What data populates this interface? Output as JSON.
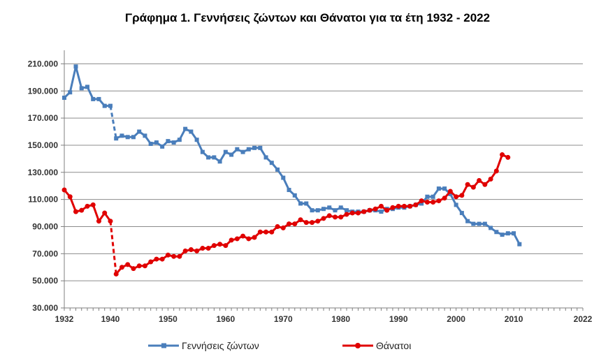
{
  "chart_data": {
    "type": "line",
    "title": "Γράφημα 1.  Γεννήσεις ζώντων και Θάνατοι για τα έτη 1932 - 2022",
    "xlabel": "",
    "ylabel": "",
    "xlim": [
      1932,
      2022
    ],
    "ylim": [
      30000,
      220000
    ],
    "x_ticks": [
      1932,
      1940,
      1950,
      1960,
      1970,
      1980,
      1990,
      2000,
      2010,
      2022
    ],
    "y_ticks": [
      30000,
      50000,
      70000,
      90000,
      110000,
      130000,
      150000,
      170000,
      190000,
      210000
    ],
    "y_tick_labels": [
      "30.000",
      "50.000",
      "70.000",
      "90.000",
      "110.000",
      "130.000",
      "150.000",
      "170.000",
      "190.000",
      "210.000"
    ],
    "grid": "horizontal",
    "legend": "bottom",
    "gap_between": [
      1940,
      1941
    ],
    "series": [
      {
        "name": "Γεννήσεις ζώντων",
        "color": "#4a7ebb",
        "marker": "square",
        "points": [
          [
            1932,
            185000
          ],
          [
            1933,
            189000
          ],
          [
            1934,
            208000
          ],
          [
            1935,
            192000
          ],
          [
            1936,
            193000
          ],
          [
            1937,
            184000
          ],
          [
            1938,
            184000
          ],
          [
            1939,
            179000
          ],
          [
            1940,
            179000
          ],
          [
            1941,
            155000
          ],
          [
            1942,
            157000
          ],
          [
            1943,
            156000
          ],
          [
            1944,
            156000
          ],
          [
            1945,
            160000
          ],
          [
            1946,
            157000
          ],
          [
            1947,
            151000
          ],
          [
            1948,
            152000
          ],
          [
            1949,
            149000
          ],
          [
            1950,
            153000
          ],
          [
            1951,
            152000
          ],
          [
            1952,
            154000
          ],
          [
            1953,
            162000
          ],
          [
            1954,
            160000
          ],
          [
            1955,
            154000
          ],
          [
            1956,
            145000
          ],
          [
            1957,
            141000
          ],
          [
            1958,
            141000
          ],
          [
            1959,
            138000
          ],
          [
            1960,
            145000
          ],
          [
            1961,
            143000
          ],
          [
            1962,
            147000
          ],
          [
            1963,
            145000
          ],
          [
            1964,
            147000
          ],
          [
            1965,
            148000
          ],
          [
            1966,
            148000
          ],
          [
            1967,
            141000
          ],
          [
            1968,
            137000
          ],
          [
            1969,
            132000
          ],
          [
            1970,
            126000
          ],
          [
            1971,
            117000
          ],
          [
            1972,
            113000
          ],
          [
            1973,
            107000
          ],
          [
            1974,
            107000
          ],
          [
            1975,
            102000
          ],
          [
            1976,
            102000
          ],
          [
            1977,
            103000
          ],
          [
            1978,
            104000
          ],
          [
            1979,
            102000
          ],
          [
            1980,
            104000
          ],
          [
            1981,
            102000
          ],
          [
            1982,
            101000
          ],
          [
            1983,
            101000
          ],
          [
            1984,
            101000
          ],
          [
            1985,
            102000
          ],
          [
            1986,
            102000
          ],
          [
            1987,
            101000
          ],
          [
            1988,
            103000
          ],
          [
            1989,
            103000
          ],
          [
            1990,
            104000
          ],
          [
            1991,
            104000
          ],
          [
            1992,
            105000
          ],
          [
            1993,
            106000
          ],
          [
            1994,
            107000
          ],
          [
            1995,
            112000
          ],
          [
            1996,
            112000
          ],
          [
            1997,
            118000
          ],
          [
            1998,
            118000
          ],
          [
            1999,
            114000
          ],
          [
            2000,
            106000
          ],
          [
            2001,
            100000
          ],
          [
            2002,
            94000
          ],
          [
            2003,
            92000
          ],
          [
            2004,
            92000
          ],
          [
            2005,
            92000
          ],
          [
            2006,
            89000
          ],
          [
            2007,
            86000
          ],
          [
            2008,
            84000
          ],
          [
            2009,
            85000
          ],
          [
            2010,
            85000
          ],
          [
            2011,
            77000
          ]
        ]
      },
      {
        "name": "Θάνατοι",
        "color": "#e00000",
        "marker": "circle",
        "points": [
          [
            1932,
            117000
          ],
          [
            1933,
            112000
          ],
          [
            1934,
            101000
          ],
          [
            1935,
            102000
          ],
          [
            1936,
            105000
          ],
          [
            1937,
            106000
          ],
          [
            1938,
            94000
          ],
          [
            1939,
            100000
          ],
          [
            1940,
            94000
          ],
          [
            1941,
            55000
          ],
          [
            1942,
            60000
          ],
          [
            1943,
            62000
          ],
          [
            1944,
            59000
          ],
          [
            1945,
            61000
          ],
          [
            1946,
            61000
          ],
          [
            1947,
            64000
          ],
          [
            1948,
            66000
          ],
          [
            1949,
            66000
          ],
          [
            1950,
            69000
          ],
          [
            1951,
            68000
          ],
          [
            1952,
            68000
          ],
          [
            1953,
            72000
          ],
          [
            1954,
            73000
          ],
          [
            1955,
            72000
          ],
          [
            1956,
            74000
          ],
          [
            1957,
            74000
          ],
          [
            1958,
            76000
          ],
          [
            1959,
            77000
          ],
          [
            1960,
            76000
          ],
          [
            1961,
            80000
          ],
          [
            1962,
            81000
          ],
          [
            1963,
            83000
          ],
          [
            1964,
            81000
          ],
          [
            1965,
            82000
          ],
          [
            1966,
            86000
          ],
          [
            1967,
            86000
          ],
          [
            1968,
            86000
          ],
          [
            1969,
            90000
          ],
          [
            1970,
            89000
          ],
          [
            1971,
            92000
          ],
          [
            1972,
            92000
          ],
          [
            1973,
            95000
          ],
          [
            1974,
            93000
          ],
          [
            1975,
            93000
          ],
          [
            1976,
            94000
          ],
          [
            1977,
            96000
          ],
          [
            1978,
            98000
          ],
          [
            1979,
            97000
          ],
          [
            1980,
            97000
          ],
          [
            1981,
            99000
          ],
          [
            1982,
            100000
          ],
          [
            1983,
            100000
          ],
          [
            1984,
            101000
          ],
          [
            1985,
            102000
          ],
          [
            1986,
            103000
          ],
          [
            1987,
            105000
          ],
          [
            1988,
            102000
          ],
          [
            1989,
            104000
          ],
          [
            1990,
            105000
          ],
          [
            1991,
            105000
          ],
          [
            1992,
            105000
          ],
          [
            1993,
            106000
          ],
          [
            1994,
            109000
          ],
          [
            1995,
            108000
          ],
          [
            1996,
            108000
          ],
          [
            1997,
            109000
          ],
          [
            1998,
            111000
          ],
          [
            1999,
            116000
          ],
          [
            2000,
            112000
          ],
          [
            2001,
            113000
          ],
          [
            2002,
            121000
          ],
          [
            2003,
            119000
          ],
          [
            2004,
            124000
          ],
          [
            2005,
            121000
          ],
          [
            2006,
            125000
          ],
          [
            2007,
            131000
          ],
          [
            2008,
            143000
          ],
          [
            2009,
            141000
          ]
        ]
      }
    ]
  }
}
